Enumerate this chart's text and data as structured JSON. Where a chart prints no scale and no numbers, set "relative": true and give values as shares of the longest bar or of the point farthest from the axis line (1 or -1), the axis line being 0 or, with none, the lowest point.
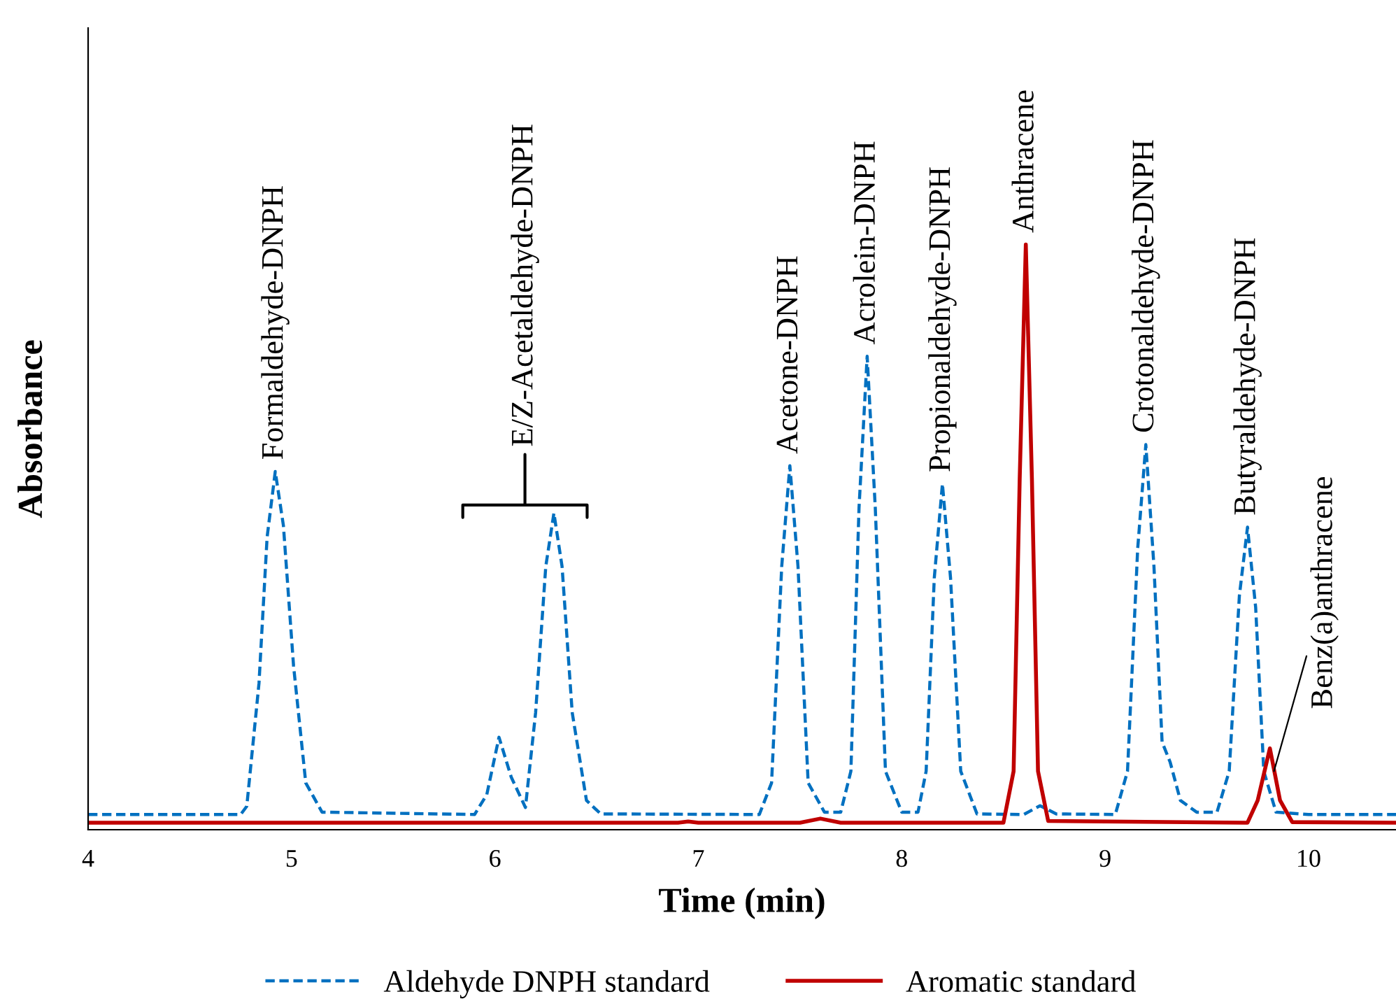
{
  "chart_data": {
    "type": "line",
    "relative": true,
    "xlabel": "Time (min)",
    "ylabel": "Absorbance",
    "xlim": [
      4,
      10.43
    ],
    "xticks": [
      4,
      5,
      6,
      7,
      8,
      9,
      10
    ],
    "legend": "bottom",
    "marker": "none",
    "series": [
      {
        "name": "Aldehyde DNPH standard",
        "color": "#0070c0",
        "line_style": "dashed",
        "x": [
          4.0,
          4.75,
          4.78,
          4.84,
          4.88,
          4.92,
          4.96,
          5.01,
          5.07,
          5.15,
          5.9,
          5.96,
          6.02,
          6.08,
          6.15,
          6.2,
          6.25,
          6.29,
          6.33,
          6.38,
          6.45,
          6.52,
          7.3,
          7.36,
          7.41,
          7.45,
          7.49,
          7.54,
          7.62,
          7.7,
          7.75,
          7.79,
          7.83,
          7.87,
          7.92,
          8.0,
          8.08,
          8.12,
          8.16,
          8.2,
          8.24,
          8.29,
          8.37,
          8.6,
          8.68,
          8.76,
          9.05,
          9.11,
          9.16,
          9.2,
          9.24,
          9.28,
          9.32,
          9.37,
          9.45,
          9.55,
          9.61,
          9.66,
          9.7,
          9.74,
          9.78,
          9.84,
          10.0,
          10.43
        ],
        "values": [
          0.026,
          0.026,
          0.04,
          0.25,
          0.5,
          0.612,
          0.52,
          0.28,
          0.08,
          0.03,
          0.026,
          0.06,
          0.158,
          0.09,
          0.038,
          0.2,
          0.45,
          0.541,
          0.45,
          0.2,
          0.05,
          0.027,
          0.026,
          0.08,
          0.45,
          0.622,
          0.45,
          0.08,
          0.03,
          0.03,
          0.1,
          0.55,
          0.809,
          0.55,
          0.1,
          0.03,
          0.03,
          0.1,
          0.43,
          0.591,
          0.43,
          0.1,
          0.027,
          0.026,
          0.041,
          0.027,
          0.026,
          0.1,
          0.48,
          0.658,
          0.45,
          0.15,
          0.115,
          0.05,
          0.03,
          0.03,
          0.1,
          0.4,
          0.517,
          0.38,
          0.1,
          0.03,
          0.026,
          0.026
        ]
      },
      {
        "name": "Aromatic standard",
        "color": "#c00000",
        "line_style": "solid",
        "x": [
          4.0,
          6.9,
          6.95,
          7.0,
          7.5,
          7.6,
          7.7,
          8.5,
          8.55,
          8.58,
          8.61,
          8.64,
          8.67,
          8.72,
          9.7,
          9.75,
          9.81,
          9.86,
          9.92,
          10.43
        ],
        "values": [
          0.012,
          0.012,
          0.014,
          0.012,
          0.012,
          0.019,
          0.012,
          0.012,
          0.1,
          0.6,
          1.0,
          0.6,
          0.1,
          0.015,
          0.012,
          0.05,
          0.139,
          0.05,
          0.013,
          0.012
        ]
      }
    ],
    "annotations": [
      {
        "text": "Formaldehyde-DNPH",
        "x": 4.92,
        "y": 0.612
      },
      "E/Z-Acetaldehyde-DNPH",
      {
        "text": "Acetone-DNPH",
        "x": 7.45,
        "y": 0.622
      },
      {
        "text": "Acrolein-DNPH",
        "x": 7.83,
        "y": 0.809
      },
      {
        "text": "Propionaldehyde-DNPH",
        "x": 8.2,
        "y": 0.591
      },
      {
        "text": "Anthracene",
        "x": 8.61,
        "y": 1.0
      },
      {
        "text": "Crotonaldehyde-DNPH",
        "x": 9.2,
        "y": 0.658
      },
      {
        "text": "Butyraldehyde-DNPH",
        "x": 9.7,
        "y": 0.517
      },
      {
        "text": "Benz(a)anthracene",
        "x": 9.83,
        "y": 0.1
      }
    ]
  }
}
